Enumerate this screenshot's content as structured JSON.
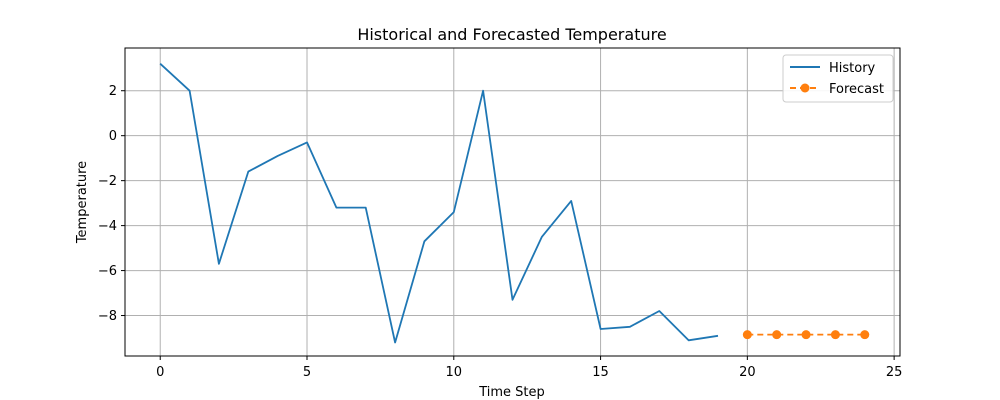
{
  "chart_data": {
    "type": "line",
    "title": "Historical and Forecasted Temperature",
    "xlabel": "Time Step",
    "ylabel": "Temperature",
    "xlim": [
      -1.2,
      25.2
    ],
    "ylim": [
      -9.8,
      3.9
    ],
    "x_ticks": [
      0,
      5,
      10,
      15,
      20,
      25
    ],
    "y_ticks": [
      2,
      0,
      -2,
      -4,
      -6,
      -8
    ],
    "x_tick_labels": [
      "0",
      "5",
      "10",
      "15",
      "20",
      "25"
    ],
    "y_tick_labels": [
      "2",
      "0",
      "−2",
      "−4",
      "−6",
      "−8"
    ],
    "grid": true,
    "legend_position": "top-right",
    "series": [
      {
        "name": "History",
        "color": "#1f77b4",
        "style": "solid",
        "marker": "none",
        "x": [
          0,
          1,
          2,
          3,
          4,
          5,
          6,
          7,
          8,
          9,
          10,
          11,
          12,
          13,
          14,
          15,
          16,
          17,
          18,
          19
        ],
        "y": [
          3.2,
          2.0,
          -5.7,
          -1.6,
          -0.9,
          -0.3,
          -3.2,
          -3.2,
          -9.2,
          -4.7,
          -3.4,
          2.0,
          -7.3,
          -4.5,
          -2.9,
          -8.6,
          -8.5,
          -7.8,
          -9.1,
          -8.9
        ]
      },
      {
        "name": "Forecast",
        "color": "#ff7f0e",
        "style": "dashed",
        "marker": "circle",
        "x": [
          20,
          21,
          22,
          23,
          24
        ],
        "y": [
          -8.85,
          -8.85,
          -8.85,
          -8.85,
          -8.85
        ]
      }
    ]
  }
}
